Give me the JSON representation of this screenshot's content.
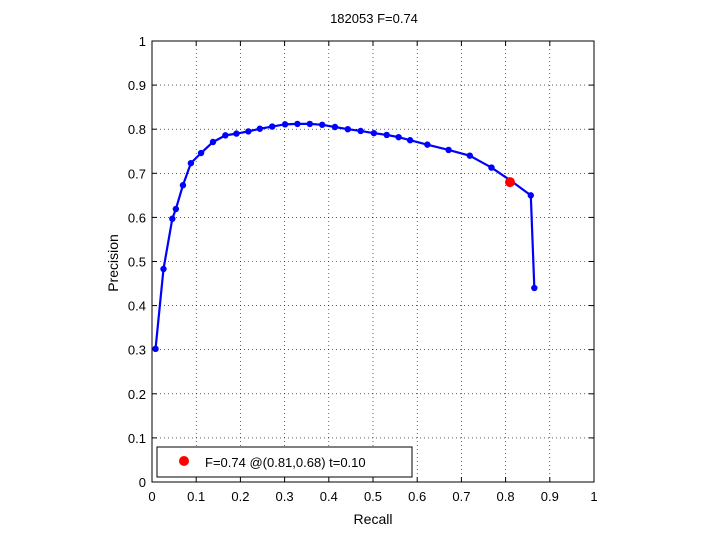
{
  "chart_data": {
    "type": "line",
    "title": "182053 F=0.74",
    "xlabel": "Recall",
    "ylabel": "Precision",
    "xlim": [
      0,
      1
    ],
    "ylim": [
      0,
      1
    ],
    "xticks": [
      0,
      0.1,
      0.2,
      0.3,
      0.4,
      0.5,
      0.6,
      0.7,
      0.8,
      0.9,
      1
    ],
    "yticks": [
      0,
      0.1,
      0.2,
      0.3,
      0.4,
      0.5,
      0.6,
      0.7,
      0.8,
      0.9,
      1
    ],
    "xtick_labels": [
      "0",
      "0.1",
      "0.2",
      "0.3",
      "0.4",
      "0.5",
      "0.6",
      "0.7",
      "0.8",
      "0.9",
      "1"
    ],
    "ytick_labels": [
      "0",
      "0.1",
      "0.2",
      "0.3",
      "0.4",
      "0.5",
      "0.6",
      "0.7",
      "0.8",
      "0.9",
      "1"
    ],
    "grid": true,
    "series": [
      {
        "color": "#0000ff",
        "x": [
          0.865,
          0.857,
          0.812,
          0.768,
          0.719,
          0.671,
          0.623,
          0.584,
          0.558,
          0.531,
          0.502,
          0.472,
          0.443,
          0.414,
          0.385,
          0.357,
          0.329,
          0.301,
          0.272,
          0.244,
          0.218,
          0.191,
          0.166,
          0.138,
          0.111,
          0.088,
          0.07,
          0.054,
          0.046,
          0.026,
          0.008
        ],
        "y": [
          0.44,
          0.65,
          0.683,
          0.713,
          0.74,
          0.753,
          0.765,
          0.775,
          0.782,
          0.787,
          0.791,
          0.796,
          0.8,
          0.805,
          0.81,
          0.812,
          0.812,
          0.811,
          0.806,
          0.801,
          0.795,
          0.79,
          0.786,
          0.771,
          0.746,
          0.723,
          0.673,
          0.619,
          0.597,
          0.483,
          0.302
        ]
      }
    ],
    "highlight": {
      "x": 0.81,
      "y": 0.68,
      "color": "#ff0000"
    },
    "legend": {
      "placement": "bottom-left",
      "text": "F=0.74 @(0.81,0.68) t=0.10"
    }
  }
}
